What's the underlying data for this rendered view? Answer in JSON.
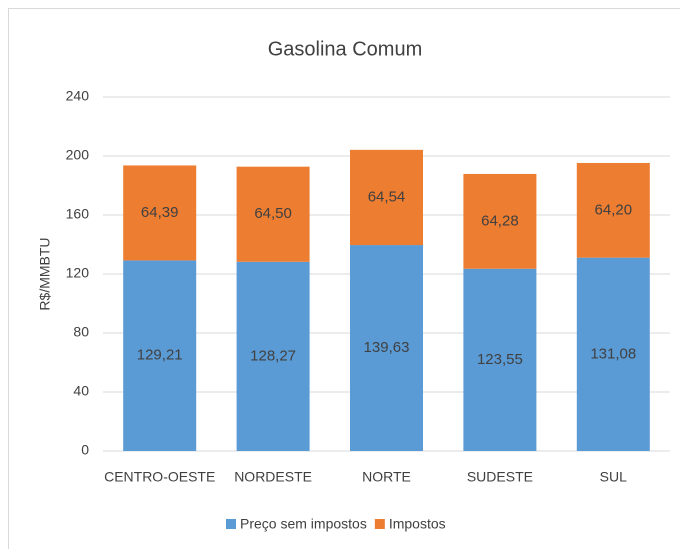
{
  "chart_data": {
    "type": "stacked-bar",
    "title": "Gasolina Comum",
    "y_label": "R$/MMBTU",
    "categories": [
      "CENTRO-OESTE",
      "NORDESTE",
      "NORTE",
      "SUDESTE",
      "SUL"
    ],
    "series": [
      {
        "name": "Preço sem impostos",
        "color": "#5b9bd5",
        "values": [
          129.21,
          128.27,
          139.63,
          123.55,
          131.08
        ],
        "value_labels": [
          "129,21",
          "128,27",
          "139,63",
          "123,55",
          "131,08"
        ]
      },
      {
        "name": "Impostos",
        "color": "#ed7d31",
        "values": [
          64.39,
          64.5,
          64.54,
          64.28,
          64.2
        ],
        "value_labels": [
          "64,39",
          "64,50",
          "64,54",
          "64,28",
          "64,20"
        ]
      }
    ],
    "ylim": [
      0,
      240
    ],
    "yticks": [
      0,
      40,
      80,
      120,
      160,
      200,
      240
    ],
    "grid": true
  }
}
